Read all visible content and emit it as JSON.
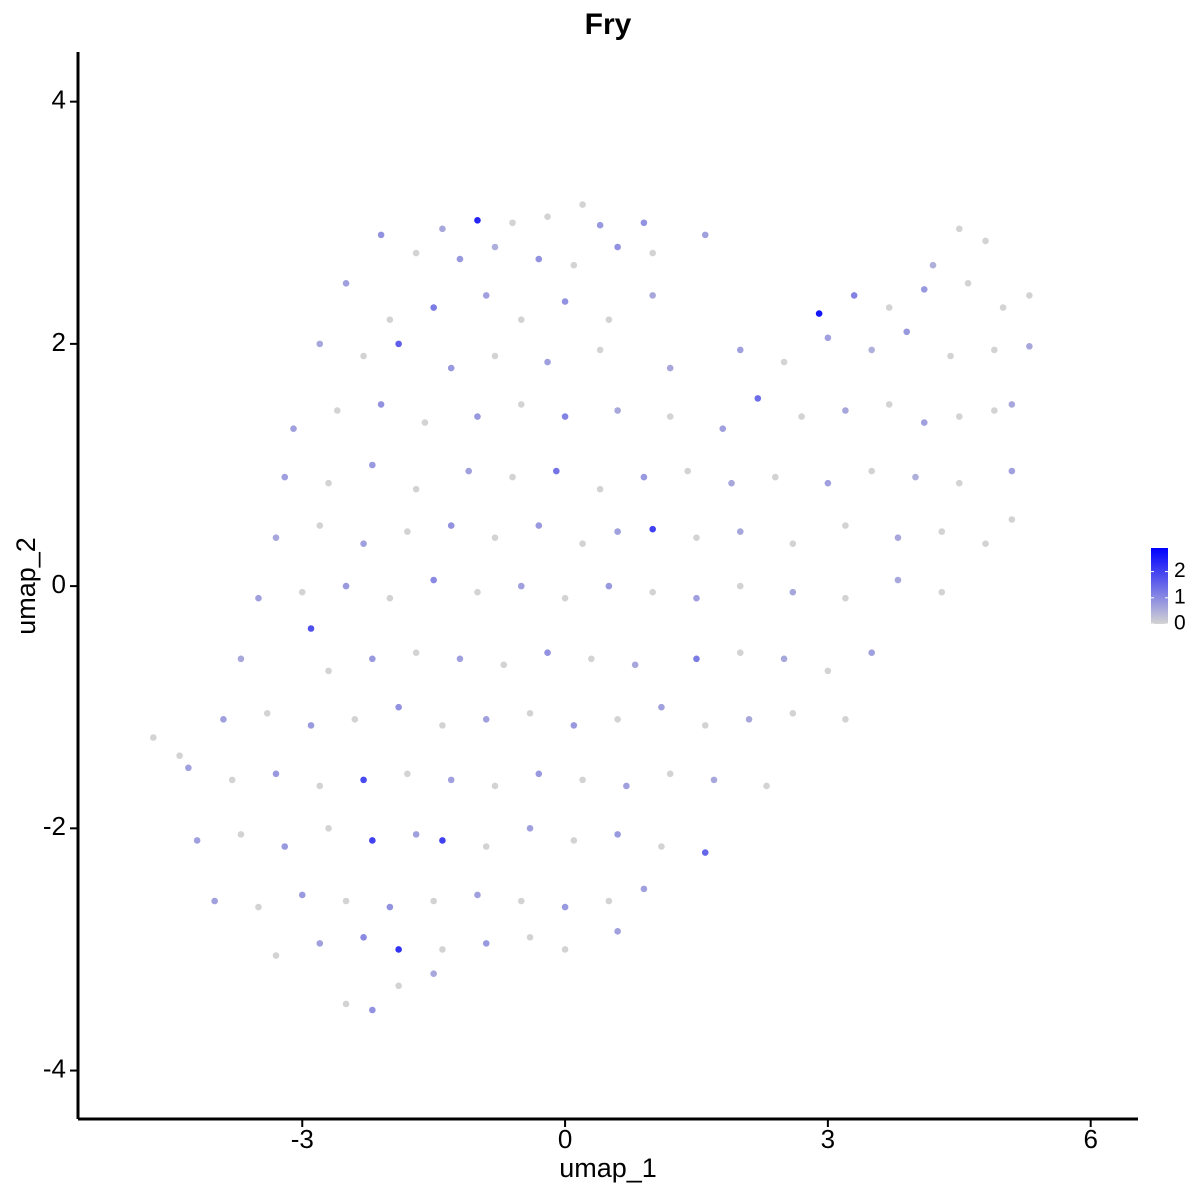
{
  "chart_data": {
    "type": "scatter",
    "title": "Fry",
    "x_label": "umap_1",
    "y_label": "umap_2",
    "xlim": [
      -5.56,
      6.54
    ],
    "ylim": [
      -4.4,
      4.41
    ],
    "xticks": [
      -3,
      0,
      3,
      6
    ],
    "yticks": [
      -4,
      -2,
      0,
      2,
      4
    ],
    "grid": false,
    "color_low": "#d3d3d3",
    "color_high": "#0000ff",
    "clim": [
      0,
      2.9
    ],
    "cticks": [
      0,
      1,
      2
    ],
    "x": [
      -1.0,
      -0.6,
      -0.2,
      0.2,
      0.4,
      -1.4,
      0.9,
      -2.1,
      -1.7,
      -1.2,
      -0.8,
      -0.3,
      0.1,
      0.6,
      1.0,
      1.6,
      4.5,
      4.8,
      4.2,
      -2.5,
      -2.0,
      -1.5,
      -0.9,
      -0.5,
      0.0,
      0.5,
      1.0,
      2.9,
      3.3,
      3.7,
      4.1,
      4.6,
      5.0,
      5.3,
      -2.8,
      -2.3,
      -1.9,
      -1.3,
      -0.8,
      -0.2,
      0.4,
      1.2,
      2.0,
      2.5,
      3.0,
      3.5,
      3.9,
      4.4,
      4.9,
      5.3,
      -3.1,
      -2.6,
      -2.1,
      -1.6,
      -1.0,
      -0.5,
      0.0,
      0.6,
      1.2,
      1.8,
      2.2,
      2.7,
      3.2,
      3.7,
      4.1,
      4.5,
      4.9,
      5.1,
      -3.2,
      -2.7,
      -2.2,
      -1.7,
      -1.1,
      -0.6,
      -0.1,
      0.4,
      0.9,
      1.4,
      1.9,
      2.4,
      3.0,
      3.5,
      4.0,
      4.5,
      5.1,
      -3.3,
      -2.8,
      -2.3,
      -1.8,
      -1.3,
      -0.8,
      -0.3,
      0.2,
      0.6,
      1.0,
      1.5,
      2.0,
      2.6,
      3.2,
      3.8,
      4.3,
      4.8,
      5.1,
      -3.5,
      -3.0,
      -2.5,
      -2.0,
      -1.5,
      -1.0,
      -0.5,
      0.0,
      0.5,
      1.0,
      1.5,
      2.0,
      2.6,
      3.2,
      3.8,
      4.3,
      -3.7,
      -2.9,
      -2.7,
      -2.2,
      -1.7,
      -1.2,
      -0.7,
      -0.2,
      0.3,
      0.8,
      1.5,
      2.0,
      2.5,
      3.0,
      3.5,
      -4.7,
      -4.4,
      -3.9,
      -3.4,
      -2.9,
      -2.4,
      -1.9,
      -1.4,
      -0.9,
      -0.4,
      0.1,
      0.6,
      1.1,
      1.6,
      2.1,
      2.6,
      3.2,
      -4.3,
      -3.8,
      -3.3,
      -2.8,
      -2.3,
      -1.8,
      -1.3,
      -0.8,
      -0.3,
      0.2,
      0.7,
      1.2,
      1.7,
      2.3,
      -4.2,
      -3.7,
      -3.2,
      -2.7,
      -2.2,
      -1.7,
      -1.4,
      -0.9,
      -0.4,
      0.1,
      0.6,
      1.1,
      1.6,
      -4.0,
      -3.5,
      -3.0,
      -2.5,
      -2.0,
      -1.5,
      -1.0,
      -0.5,
      0.0,
      0.5,
      0.9,
      -3.3,
      -2.8,
      -2.3,
      -1.9,
      -1.4,
      -0.9,
      -0.4,
      0.0,
      0.6,
      -2.5,
      -2.2,
      -1.9,
      -1.5
    ],
    "y": [
      3.02,
      3.0,
      3.05,
      3.15,
      2.98,
      2.95,
      3.0,
      2.9,
      2.75,
      2.7,
      2.8,
      2.7,
      2.65,
      2.8,
      2.75,
      2.9,
      2.95,
      2.85,
      2.65,
      2.5,
      2.2,
      2.3,
      2.4,
      2.2,
      2.35,
      2.2,
      2.4,
      2.25,
      2.4,
      2.3,
      2.45,
      2.5,
      2.3,
      2.4,
      2.0,
      1.9,
      2.0,
      1.8,
      1.9,
      1.85,
      1.95,
      1.8,
      1.95,
      1.85,
      2.05,
      1.95,
      2.1,
      1.9,
      1.95,
      1.98,
      1.3,
      1.45,
      1.5,
      1.35,
      1.4,
      1.5,
      1.4,
      1.45,
      1.4,
      1.3,
      1.55,
      1.4,
      1.45,
      1.5,
      1.35,
      1.4,
      1.45,
      1.5,
      0.9,
      0.85,
      1.0,
      0.8,
      0.95,
      0.9,
      0.95,
      0.8,
      0.9,
      0.95,
      0.85,
      0.9,
      0.85,
      0.95,
      0.9,
      0.85,
      0.95,
      0.4,
      0.5,
      0.35,
      0.45,
      0.5,
      0.4,
      0.5,
      0.35,
      0.45,
      0.47,
      0.4,
      0.45,
      0.35,
      0.5,
      0.4,
      0.45,
      0.35,
      0.55,
      -0.1,
      -0.05,
      0.0,
      -0.1,
      0.05,
      -0.05,
      0.0,
      -0.1,
      0.0,
      -0.05,
      -0.1,
      0.0,
      -0.05,
      -0.1,
      0.05,
      -0.05,
      -0.6,
      -0.35,
      -0.7,
      -0.6,
      -0.55,
      -0.6,
      -0.65,
      -0.55,
      -0.6,
      -0.65,
      -0.6,
      -0.55,
      -0.6,
      -0.7,
      -0.55,
      -1.25,
      -1.4,
      -1.1,
      -1.05,
      -1.15,
      -1.1,
      -1.0,
      -1.15,
      -1.1,
      -1.05,
      -1.15,
      -1.1,
      -1.0,
      -1.15,
      -1.1,
      -1.05,
      -1.1,
      -1.5,
      -1.6,
      -1.55,
      -1.65,
      -1.6,
      -1.55,
      -1.6,
      -1.65,
      -1.55,
      -1.6,
      -1.65,
      -1.55,
      -1.6,
      -1.65,
      -2.1,
      -2.05,
      -2.15,
      -2.0,
      -2.1,
      -2.05,
      -2.1,
      -2.15,
      -2.0,
      -2.1,
      -2.05,
      -2.15,
      -2.2,
      -2.6,
      -2.65,
      -2.55,
      -2.6,
      -2.65,
      -2.6,
      -2.55,
      -2.6,
      -2.65,
      -2.6,
      -2.5,
      -3.05,
      -2.95,
      -2.9,
      -3.0,
      -3.0,
      -2.95,
      -2.9,
      -3.0,
      -2.85,
      -3.45,
      -3.5,
      -3.3,
      -3.2
    ],
    "values": [
      2.4,
      0,
      0,
      0,
      0.8,
      0.6,
      0.9,
      0.9,
      0,
      0.8,
      0.5,
      0.9,
      0,
      0.9,
      0,
      0.7,
      0,
      0,
      0.5,
      0.7,
      0,
      1.2,
      0.7,
      0,
      0.9,
      0,
      0.6,
      2.6,
      1.1,
      0,
      0.8,
      0,
      0,
      0,
      0.6,
      0,
      1.6,
      0.8,
      0,
      0.7,
      0,
      0.6,
      0.7,
      0,
      0.7,
      0.5,
      0.8,
      0,
      0,
      0.6,
      0.7,
      0,
      0.9,
      0,
      0.8,
      0,
      1.1,
      0.6,
      0,
      0.7,
      1.4,
      0,
      0.6,
      0,
      0.7,
      0,
      0,
      0.6,
      0.7,
      0,
      0.8,
      0,
      0.7,
      0,
      1.3,
      0,
      0.8,
      0,
      0.6,
      0,
      0.7,
      0,
      0.5,
      0,
      0.7,
      0.6,
      0,
      0.7,
      0,
      0.9,
      0,
      0.8,
      0,
      0.7,
      2.0,
      0,
      0.6,
      0,
      0,
      0.6,
      0,
      0,
      0,
      0.7,
      0,
      0.8,
      0,
      1.0,
      0,
      0.7,
      0,
      0.8,
      0,
      0.7,
      0,
      0.6,
      0,
      0.6,
      0,
      0.6,
      1.8,
      0,
      0.8,
      0,
      0.7,
      0,
      0.9,
      0,
      0.6,
      1.2,
      0,
      0.6,
      0,
      0.7,
      0,
      0,
      0.7,
      0,
      0.8,
      0,
      0.9,
      0,
      0.7,
      0,
      0.8,
      0,
      0.7,
      0,
      0.6,
      0,
      0,
      0.7,
      0,
      0.8,
      0,
      1.9,
      0,
      0.7,
      0,
      0.8,
      0,
      0.7,
      0,
      0.6,
      0,
      0.7,
      0,
      0.8,
      0,
      2.0,
      0.7,
      2.0,
      0,
      0.7,
      0,
      0.8,
      0,
      1.5,
      0.7,
      0,
      0.8,
      0,
      0.9,
      0,
      0.7,
      0,
      0.8,
      0,
      0.7,
      0,
      0.7,
      1.0,
      2.2,
      0,
      0.8,
      0,
      0,
      0.7,
      0,
      0.9,
      0,
      0.6
    ]
  }
}
